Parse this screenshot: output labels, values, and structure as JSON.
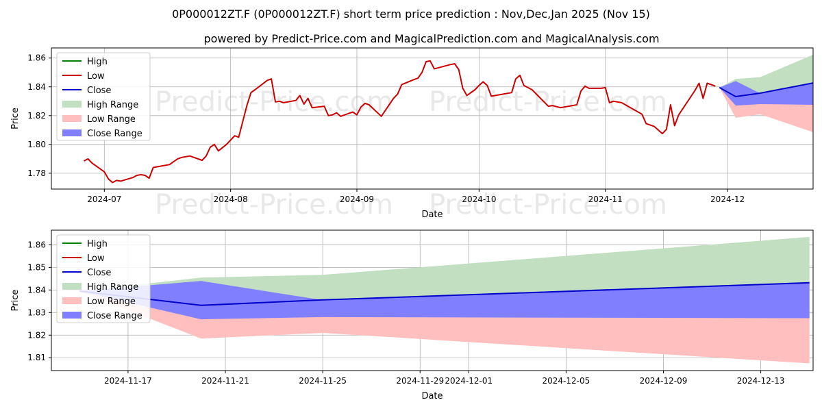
{
  "title": "0P000012ZT.F (0P000012ZT.F) short term price prediction : Nov,Dec,Jan 2025 (Nov 15)",
  "subtitle": "powered by Predict-Price.com and MagicalPrediction.com and MagicalAnalysis.com",
  "watermark": "Predict-Price.com",
  "colors": {
    "high": "#008000",
    "low": "#cc0000",
    "close": "#0000cc",
    "high_range": "#c2dfc2",
    "low_range": "#ffbfbf",
    "close_range": "#8080ff",
    "grid": "#b0b0b0"
  },
  "chart_data": [
    {
      "type": "line",
      "xlabel": "Date",
      "ylabel": "Price",
      "x_range": [
        "2024-06-18",
        "2024-12-22"
      ],
      "ylim": [
        1.769,
        1.867
      ],
      "yticks": [
        1.78,
        1.8,
        1.82,
        1.84,
        1.86
      ],
      "xticks": [
        "2024-07",
        "2024-08",
        "2024-09",
        "2024-10",
        "2024-11",
        "2024-12"
      ],
      "xtick_dates": [
        "2024-07-01",
        "2024-08-01",
        "2024-09-01",
        "2024-10-01",
        "2024-11-01",
        "2024-12-01"
      ],
      "grid": true,
      "legend": "top-left",
      "legend_entries": [
        "High",
        "Low",
        "Close",
        "High Range",
        "Low Range",
        "Close Range"
      ],
      "series": [
        {
          "name": "Low",
          "points": [
            [
              "2024-06-26",
              1.7885
            ],
            [
              "2024-06-27",
              1.79
            ],
            [
              "2024-06-28",
              1.787
            ],
            [
              "2024-07-01",
              1.781
            ],
            [
              "2024-07-02",
              1.776
            ],
            [
              "2024-07-03",
              1.7735
            ],
            [
              "2024-07-04",
              1.775
            ],
            [
              "2024-07-05",
              1.7745
            ],
            [
              "2024-07-08",
              1.777
            ],
            [
              "2024-07-09",
              1.7785
            ],
            [
              "2024-07-10",
              1.779
            ],
            [
              "2024-07-11",
              1.7785
            ],
            [
              "2024-07-12",
              1.7765
            ],
            [
              "2024-07-13",
              1.784
            ],
            [
              "2024-07-15",
              1.785
            ],
            [
              "2024-07-17",
              1.786
            ],
            [
              "2024-07-18",
              1.788
            ],
            [
              "2024-07-19",
              1.79
            ],
            [
              "2024-07-20",
              1.791
            ],
            [
              "2024-07-22",
              1.792
            ],
            [
              "2024-07-23",
              1.791
            ],
            [
              "2024-07-25",
              1.789
            ],
            [
              "2024-07-26",
              1.792
            ],
            [
              "2024-07-27",
              1.798
            ],
            [
              "2024-07-28",
              1.8
            ],
            [
              "2024-07-29",
              1.7955
            ],
            [
              "2024-07-31",
              1.8
            ],
            [
              "2024-08-02",
              1.806
            ],
            [
              "2024-08-03",
              1.805
            ],
            [
              "2024-08-05",
              1.827
            ],
            [
              "2024-08-06",
              1.836
            ],
            [
              "2024-08-07",
              1.838
            ],
            [
              "2024-08-10",
              1.8445
            ],
            [
              "2024-08-11",
              1.8455
            ],
            [
              "2024-08-12",
              1.8295
            ],
            [
              "2024-08-13",
              1.83
            ],
            [
              "2024-08-14",
              1.829
            ],
            [
              "2024-08-17",
              1.8305
            ],
            [
              "2024-08-18",
              1.834
            ],
            [
              "2024-08-19",
              1.828
            ],
            [
              "2024-08-20",
              1.832
            ],
            [
              "2024-08-21",
              1.8255
            ],
            [
              "2024-08-24",
              1.8265
            ],
            [
              "2024-08-25",
              1.82
            ],
            [
              "2024-08-26",
              1.8205
            ],
            [
              "2024-08-27",
              1.822
            ],
            [
              "2024-08-28",
              1.8195
            ],
            [
              "2024-08-31",
              1.8225
            ],
            [
              "2024-09-01",
              1.8205
            ],
            [
              "2024-09-02",
              1.826
            ],
            [
              "2024-09-03",
              1.8285
            ],
            [
              "2024-09-04",
              1.8275
            ],
            [
              "2024-09-07",
              1.8195
            ],
            [
              "2024-09-10",
              1.832
            ],
            [
              "2024-09-11",
              1.835
            ],
            [
              "2024-09-12",
              1.8415
            ],
            [
              "2024-09-15",
              1.845
            ],
            [
              "2024-09-16",
              1.846
            ],
            [
              "2024-09-17",
              1.85
            ],
            [
              "2024-09-18",
              1.8575
            ],
            [
              "2024-09-19",
              1.858
            ],
            [
              "2024-09-20",
              1.8525
            ],
            [
              "2024-09-24",
              1.8555
            ],
            [
              "2024-09-25",
              1.856
            ],
            [
              "2024-09-26",
              1.852
            ],
            [
              "2024-09-27",
              1.839
            ],
            [
              "2024-09-28",
              1.834
            ],
            [
              "2024-09-30",
              1.838
            ],
            [
              "2024-10-01",
              1.841
            ],
            [
              "2024-10-02",
              1.8435
            ],
            [
              "2024-10-03",
              1.841
            ],
            [
              "2024-10-04",
              1.8335
            ],
            [
              "2024-10-05",
              1.834
            ],
            [
              "2024-10-09",
              1.836
            ],
            [
              "2024-10-10",
              1.8455
            ],
            [
              "2024-10-11",
              1.848
            ],
            [
              "2024-10-12",
              1.841
            ],
            [
              "2024-10-14",
              1.838
            ],
            [
              "2024-10-18",
              1.8265
            ],
            [
              "2024-10-19",
              1.827
            ],
            [
              "2024-10-21",
              1.8255
            ],
            [
              "2024-10-25",
              1.8275
            ],
            [
              "2024-10-26",
              1.837
            ],
            [
              "2024-10-27",
              1.8405
            ],
            [
              "2024-10-28",
              1.839
            ],
            [
              "2024-10-31",
              1.839
            ],
            [
              "2024-11-01",
              1.8395
            ],
            [
              "2024-11-02",
              1.829
            ],
            [
              "2024-11-03",
              1.83
            ],
            [
              "2024-11-05",
              1.829
            ],
            [
              "2024-11-10",
              1.821
            ],
            [
              "2024-11-11",
              1.8145
            ],
            [
              "2024-11-13",
              1.8125
            ],
            [
              "2024-11-15",
              1.8075
            ],
            [
              "2024-11-16",
              1.8105
            ],
            [
              "2024-11-17",
              1.8275
            ],
            [
              "2024-11-18",
              1.813
            ],
            [
              "2024-11-19",
              1.8205
            ],
            [
              "2024-11-23",
              1.8375
            ],
            [
              "2024-11-24",
              1.8425
            ],
            [
              "2024-11-25",
              1.832
            ],
            [
              "2024-11-26",
              1.8425
            ],
            [
              "2024-11-28",
              1.8405
            ]
          ]
        }
      ],
      "forecast": {
        "dates": [
          "2024-11-29",
          "2024-12-03",
          "2024-12-09",
          "2024-12-23"
        ],
        "high_upper": [
          1.8395,
          1.8455,
          1.8467,
          1.8635
        ],
        "low_lower": [
          1.8395,
          1.8185,
          1.821,
          1.8075
        ],
        "close_upper": [
          1.8395,
          1.844,
          1.8355,
          1.8432
        ],
        "close_lower": [
          1.8395,
          1.827,
          1.828,
          1.8275
        ],
        "close": [
          1.8395,
          1.8332,
          1.8356,
          1.8432
        ]
      }
    },
    {
      "type": "line",
      "xlabel": "Date",
      "ylabel": "Price",
      "x_range": [
        "2024-11-13.85",
        "2024-12-15.15"
      ],
      "ylim": [
        1.8043,
        1.8665
      ],
      "yticks": [
        1.81,
        1.82,
        1.83,
        1.84,
        1.85,
        1.86
      ],
      "xticks": [
        "2024-11-17",
        "2024-11-21",
        "2024-11-25",
        "2024-11-29",
        "2024-12-01",
        "2024-12-05",
        "2024-12-09",
        "2024-12-13"
      ],
      "grid": true,
      "legend": "top-left",
      "legend_entries": [
        "High",
        "Low",
        "Close",
        "High Range",
        "Low Range",
        "Close Range"
      ],
      "forecast": {
        "dates": [
          "2024-11-15",
          "2024-11-20",
          "2024-11-25",
          "2024-12-15"
        ],
        "high_upper": [
          1.8395,
          1.8455,
          1.8467,
          1.8635
        ],
        "low_lower": [
          1.8395,
          1.8185,
          1.821,
          1.8075
        ],
        "close_upper": [
          1.8395,
          1.844,
          1.8355,
          1.8432
        ],
        "close_lower": [
          1.8395,
          1.827,
          1.828,
          1.8275
        ],
        "close": [
          1.8395,
          1.8332,
          1.8356,
          1.8432
        ]
      }
    }
  ]
}
